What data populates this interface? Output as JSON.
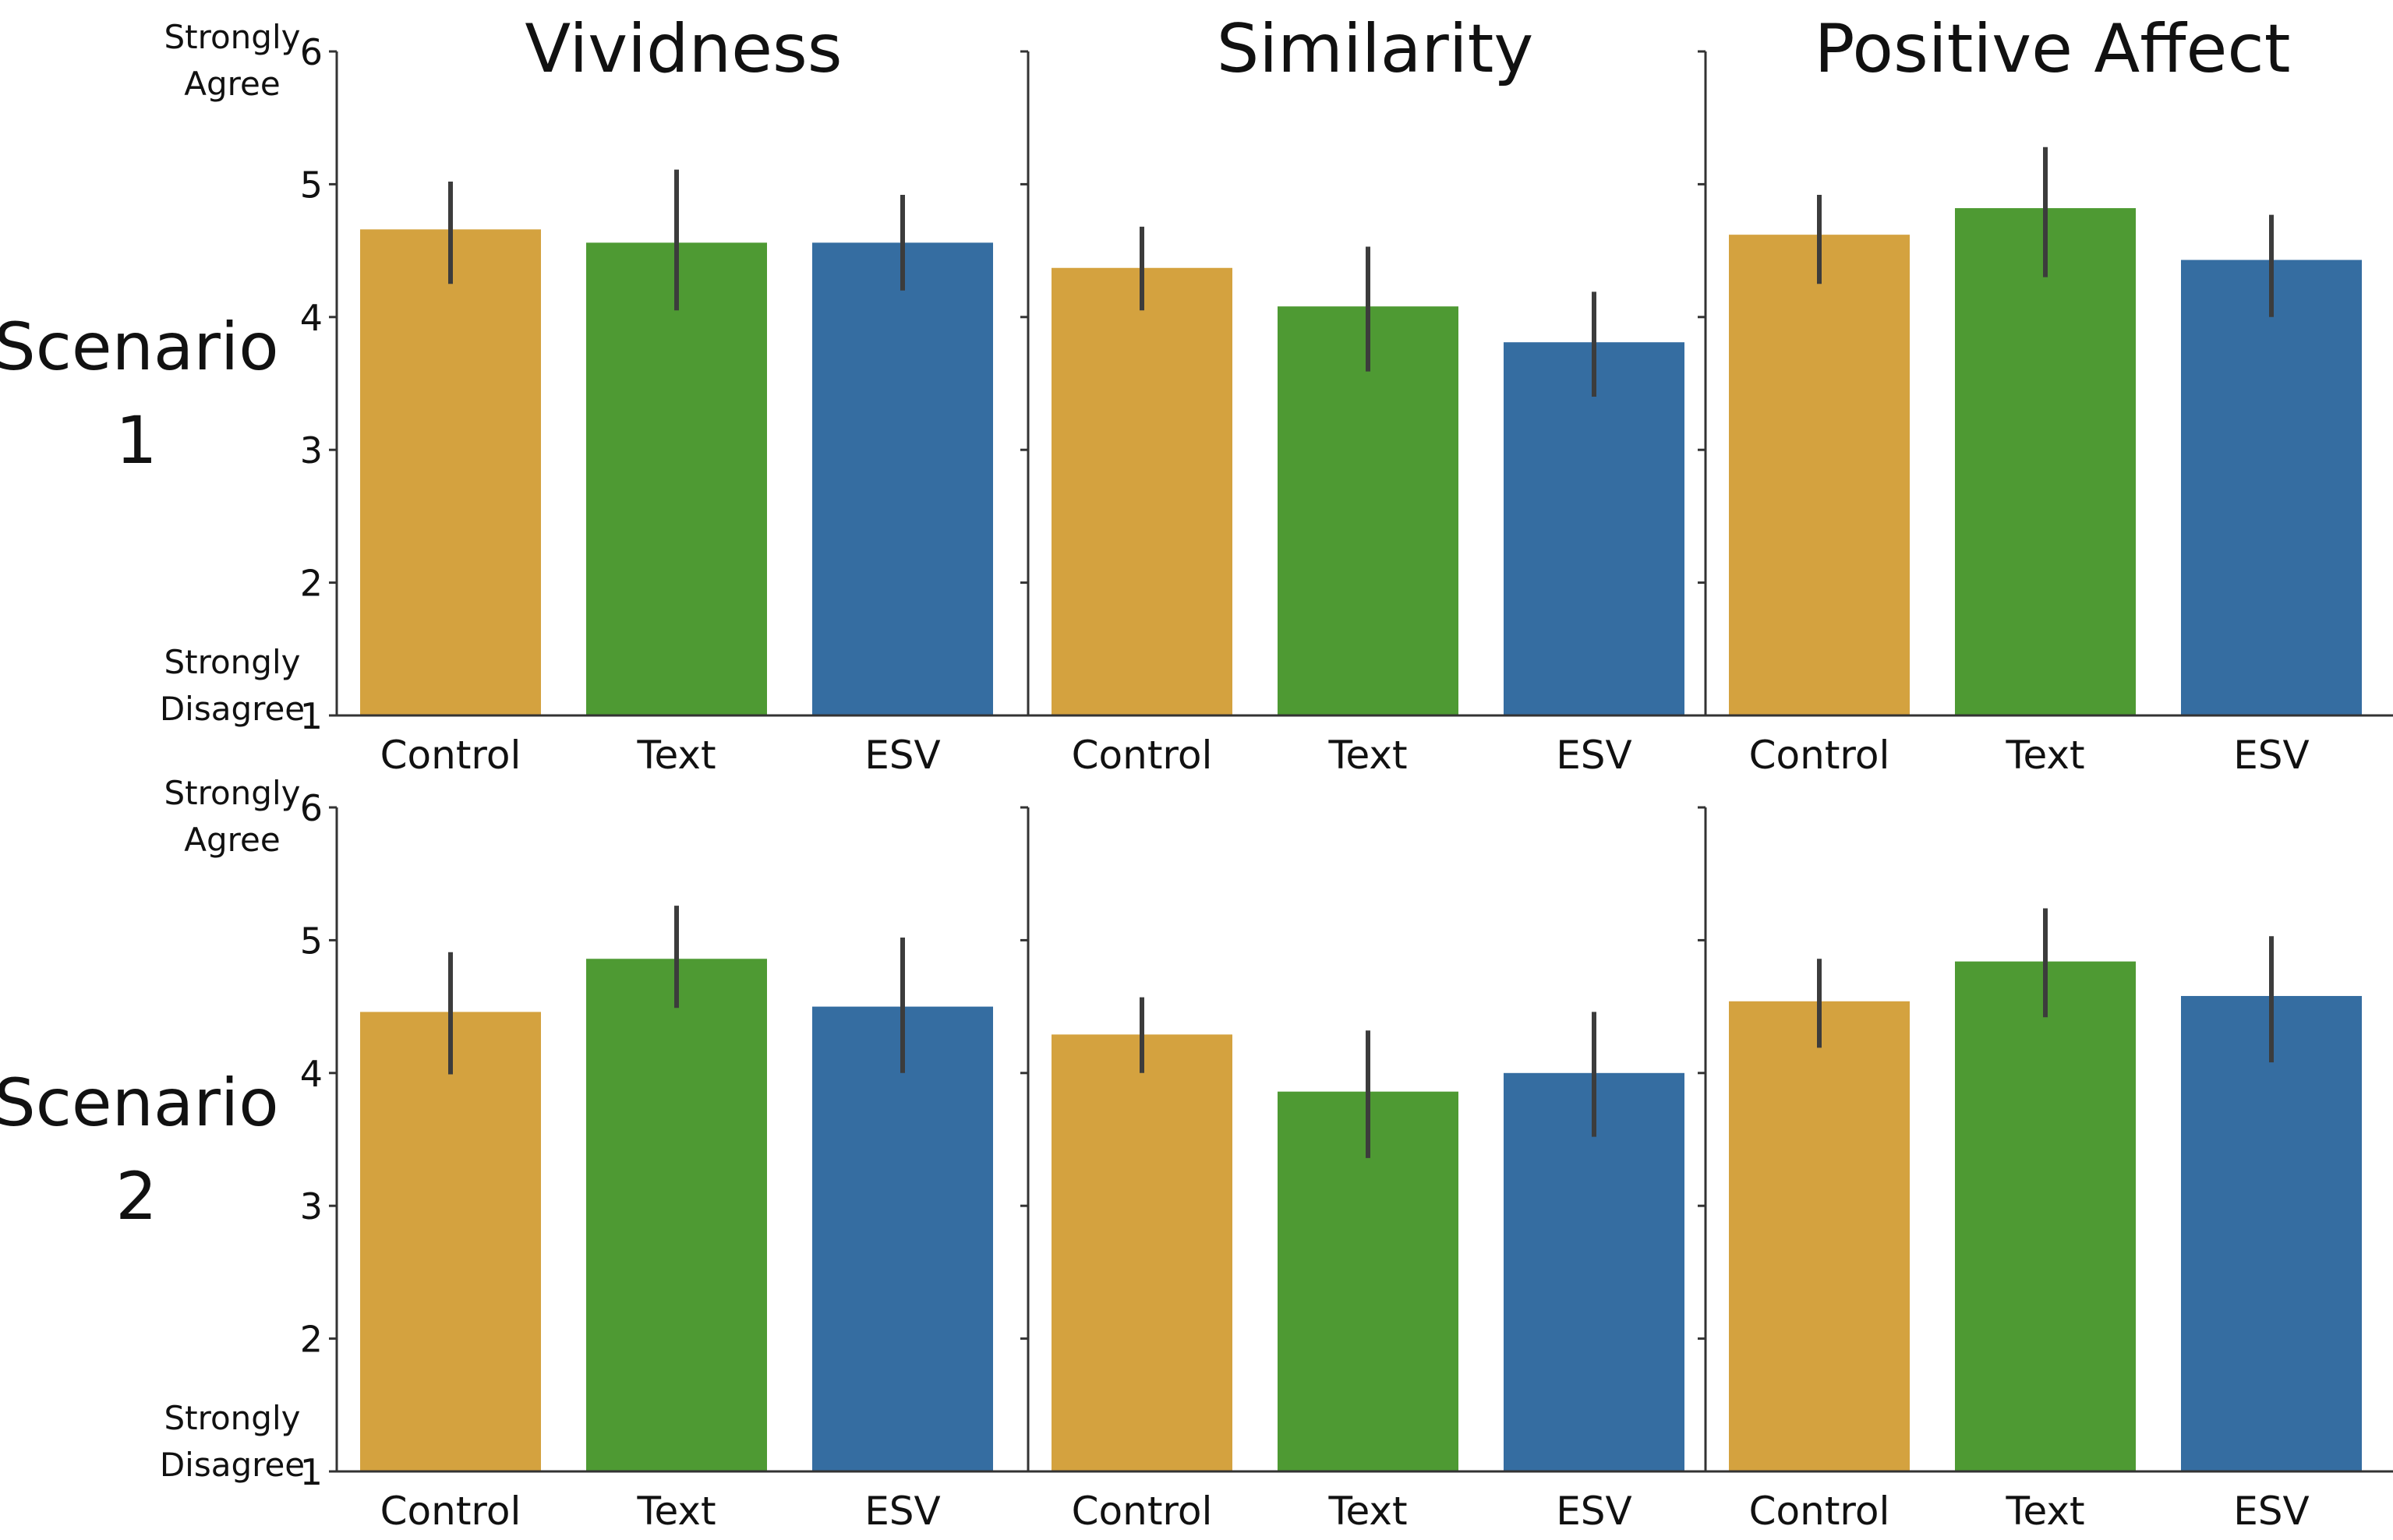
{
  "chart_data": {
    "type": "bar",
    "layout": "faceted-grid",
    "categories": [
      "Control",
      "Text",
      "ESV"
    ],
    "category_colors": [
      "#D4A23F",
      "#4E9A33",
      "#356DA1"
    ],
    "errorbar_color": "#3C3C3C",
    "columns": [
      "Vividness",
      "Similarity",
      "Positive Affect"
    ],
    "rows": [
      {
        "line1": "Scenario",
        "line2": "1"
      },
      {
        "line1": "Scenario",
        "line2": "2"
      }
    ],
    "y_axis": {
      "ylim": [
        1,
        6
      ],
      "ticks": [
        "1",
        "2",
        "3",
        "4",
        "5",
        "6"
      ],
      "top_anchor": [
        "Strongly",
        "Agree"
      ],
      "bottom_anchor": [
        "Strongly",
        "Disagree"
      ]
    },
    "panels": [
      {
        "row": 0,
        "column": "Vividness",
        "values": [
          4.66,
          4.56,
          4.56
        ],
        "ci_low": [
          4.25,
          4.05,
          4.2
        ],
        "ci_high": [
          5.02,
          5.11,
          4.92
        ]
      },
      {
        "row": 0,
        "column": "Similarity",
        "values": [
          4.37,
          4.08,
          3.81
        ],
        "ci_low": [
          4.05,
          3.59,
          3.4
        ],
        "ci_high": [
          4.68,
          4.53,
          4.19
        ]
      },
      {
        "row": 0,
        "column": "Positive Affect",
        "values": [
          4.62,
          4.82,
          4.43
        ],
        "ci_low": [
          4.25,
          4.3,
          4.0
        ],
        "ci_high": [
          4.92,
          5.28,
          4.77
        ]
      },
      {
        "row": 1,
        "column": "Vividness",
        "values": [
          4.46,
          4.86,
          4.5
        ],
        "ci_low": [
          3.99,
          4.49,
          4.0
        ],
        "ci_high": [
          4.91,
          5.26,
          5.02
        ]
      },
      {
        "row": 1,
        "column": "Similarity",
        "values": [
          4.29,
          3.86,
          4.0
        ],
        "ci_low": [
          4.0,
          3.36,
          3.52
        ],
        "ci_high": [
          4.57,
          4.32,
          4.46
        ]
      },
      {
        "row": 1,
        "column": "Positive Affect",
        "values": [
          4.54,
          4.84,
          4.58
        ],
        "ci_low": [
          4.19,
          4.42,
          4.08
        ],
        "ci_high": [
          4.86,
          5.24,
          5.03
        ]
      }
    ]
  }
}
